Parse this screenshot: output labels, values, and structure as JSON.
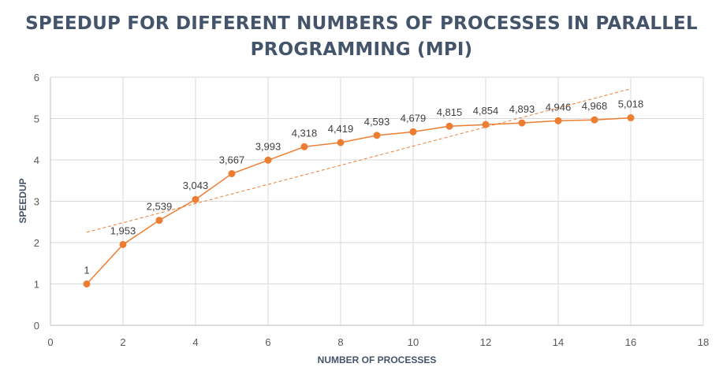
{
  "chart_data": {
    "type": "scatter",
    "title_lines": [
      "SPEEDUP FOR DIFFERENT NUMBERS OF PROCESSES IN PARALLEL",
      "PROGRAMMING (MPI)"
    ],
    "xlabel": "NUMBER OF PROCESSES",
    "ylabel": "SPEEDUP",
    "xlim": [
      0,
      18
    ],
    "ylim": [
      0,
      6
    ],
    "x_ticks": [
      0,
      2,
      4,
      6,
      8,
      10,
      12,
      14,
      16,
      18
    ],
    "y_ticks": [
      0,
      1,
      2,
      3,
      4,
      5,
      6
    ],
    "grid": true,
    "series": [
      {
        "x": [
          1,
          2,
          3,
          4,
          5,
          6,
          7,
          8,
          9,
          10,
          11,
          12,
          13,
          14,
          15,
          16
        ],
        "y": [
          1,
          1.953,
          2.539,
          3.043,
          3.667,
          3.993,
          4.318,
          4.419,
          4.593,
          4.679,
          4.815,
          4.854,
          4.893,
          4.946,
          4.968,
          5.018
        ],
        "labels": [
          "1",
          "1,953",
          "2,539",
          "3,043",
          "3,667",
          "3,993",
          "4,318",
          "4,419",
          "4,593",
          "4,679",
          "4,815",
          "4,854",
          "4,893",
          "4,946",
          "4,968",
          "5,018"
        ],
        "color": "#ed7d31"
      }
    ],
    "trendline": {
      "type": "linear",
      "x": [
        1,
        16
      ],
      "y": [
        2.25,
        5.72
      ],
      "color": "#ed7d31",
      "style": "dashed"
    },
    "gridline_color": "#d9d9d9"
  }
}
